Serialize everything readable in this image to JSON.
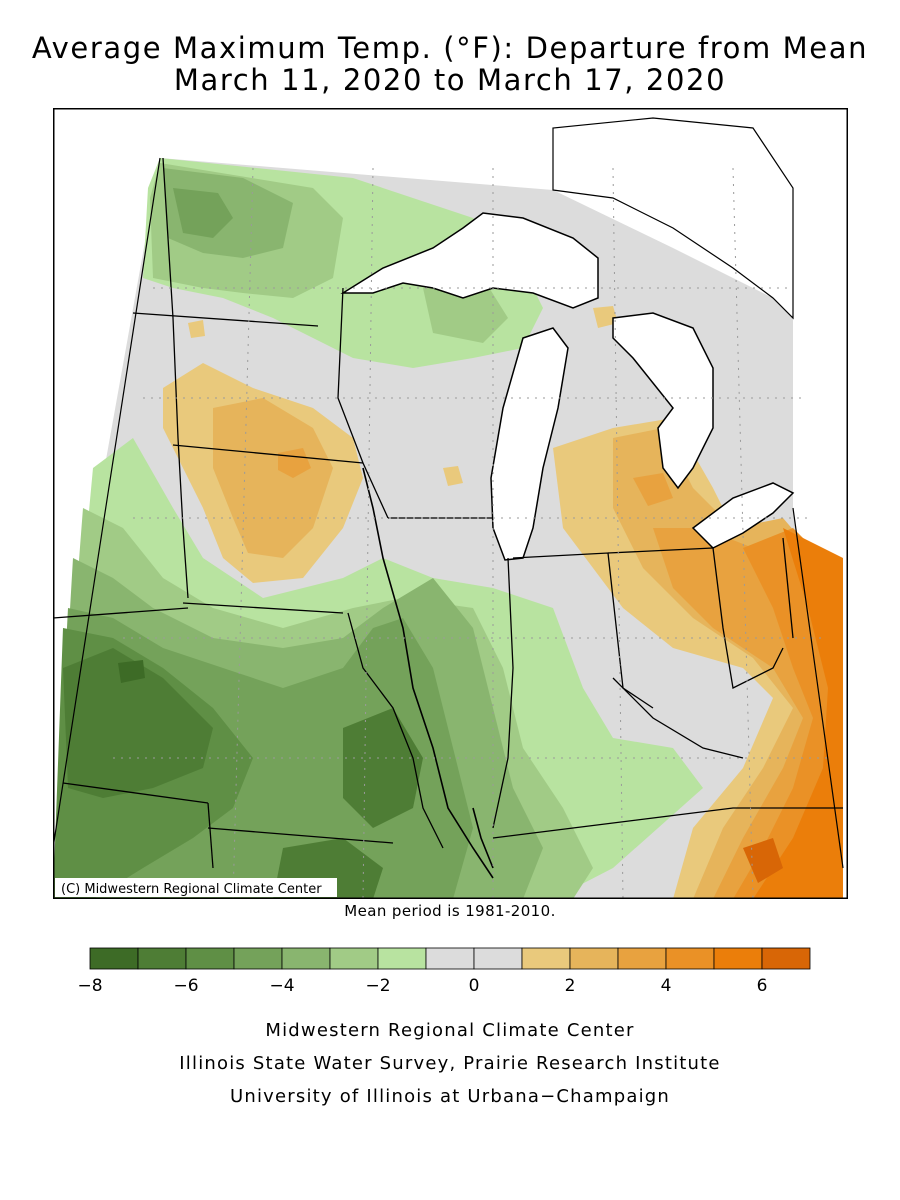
{
  "title": "Average Maximum Temp. (°F): Departure from Mean",
  "subtitle": "March 11, 2020 to March 17, 2020",
  "copyright": "(C) Midwestern Regional Climate Center",
  "mean_period": "Mean period is 1981-2010.",
  "legend": {
    "bins": [
      {
        "from": -8,
        "to": -7,
        "color": "#3d6b26"
      },
      {
        "from": -7,
        "to": -6,
        "color": "#4e7d35"
      },
      {
        "from": -6,
        "to": -5,
        "color": "#5f8f45"
      },
      {
        "from": -5,
        "to": -4,
        "color": "#74a25a"
      },
      {
        "from": -4,
        "to": -3,
        "color": "#89b56f"
      },
      {
        "from": -3,
        "to": -2,
        "color": "#a1cb86"
      },
      {
        "from": -2,
        "to": -1,
        "color": "#b8e3a0"
      },
      {
        "from": -1,
        "to": 0,
        "color": "#dcdcdc"
      },
      {
        "from": 0,
        "to": 1,
        "color": "#dcdcdc"
      },
      {
        "from": 1,
        "to": 2,
        "color": "#e9c97c"
      },
      {
        "from": 2,
        "to": 3,
        "color": "#e6b45b"
      },
      {
        "from": 3,
        "to": 4,
        "color": "#e8a23f"
      },
      {
        "from": 4,
        "to": 5,
        "color": "#ea9126"
      },
      {
        "from": 5,
        "to": 6,
        "color": "#eb7e0a"
      },
      {
        "from": 6,
        "to": 7,
        "color": "#d86606"
      }
    ],
    "tick_values": [
      -8,
      -6,
      -4,
      -2,
      0,
      2,
      4,
      6
    ],
    "tick_labels": [
      "−8",
      "−6",
      "−4",
      "−2",
      "0",
      "2",
      "4",
      "6"
    ]
  },
  "footer": {
    "line1": "Midwestern Regional Climate Center",
    "line2": "Illinois State Water Survey, Prairie Research Institute",
    "line3": "University of Illinois at Urbana−Champaign"
  }
}
